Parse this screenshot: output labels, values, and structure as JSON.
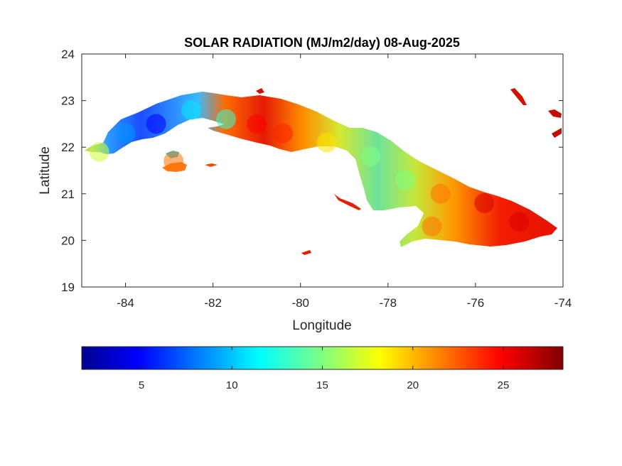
{
  "chart_data": {
    "type": "heatmap",
    "title": "SOLAR RADIATION (MJ/m2/day) 08-Aug-2025",
    "xlabel": "Longitude",
    "ylabel": "Latitude",
    "xlim": [
      -85,
      -74
    ],
    "ylim": [
      19,
      24
    ],
    "xticks": [
      -84,
      -82,
      -80,
      -78,
      -76,
      -74
    ],
    "yticks": [
      19,
      20,
      21,
      22,
      23,
      24
    ],
    "grid": false,
    "colormap": "jet",
    "colorbar": {
      "orientation": "horizontal",
      "placement": "below",
      "range": [
        1.7,
        28.3
      ],
      "ticks": [
        5,
        10,
        15,
        20,
        25
      ]
    },
    "regions": [
      {
        "name": "",
        "values": [
          {
            "lon": -84.6,
            "lat": 21.9,
            "value": 17
          },
          {
            "lon": -84.0,
            "lat": 22.3,
            "value": 9
          },
          {
            "lon": -83.3,
            "lat": 22.5,
            "value": 5
          },
          {
            "lon": -82.5,
            "lat": 22.8,
            "value": 11
          },
          {
            "lon": -81.7,
            "lat": 22.6,
            "value": 13
          },
          {
            "lon": -81.0,
            "lat": 22.5,
            "value": 25
          },
          {
            "lon": -80.4,
            "lat": 22.3,
            "value": 24
          },
          {
            "lon": -79.4,
            "lat": 22.1,
            "value": 19
          },
          {
            "lon": -78.4,
            "lat": 21.8,
            "value": 15
          },
          {
            "lon": -77.6,
            "lat": 21.3,
            "value": 15
          },
          {
            "lon": -76.8,
            "lat": 21.0,
            "value": 22
          },
          {
            "lon": -75.8,
            "lat": 20.8,
            "value": 26
          },
          {
            "lon": -75.0,
            "lat": 20.4,
            "value": 26
          },
          {
            "lon": -77.0,
            "lat": 20.3,
            "value": 22
          },
          {
            "lon": -82.9,
            "lat": 21.7,
            "value": 22
          }
        ]
      }
    ]
  }
}
